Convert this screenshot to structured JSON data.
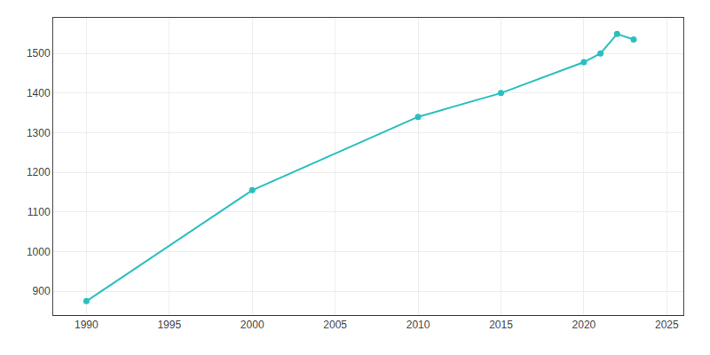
{
  "chart_data": {
    "type": "line",
    "x": [
      1990,
      2000,
      2010,
      2015,
      2020,
      2021,
      2022,
      2023
    ],
    "values": [
      875,
      1155,
      1340,
      1400,
      1478,
      1500,
      1549,
      1535
    ],
    "color": "#2ABFBF",
    "marker": "circle",
    "xlim": [
      1988,
      2026
    ],
    "ylim": [
      840,
      1590
    ],
    "xticks": [
      1990,
      1995,
      2000,
      2005,
      2010,
      2015,
      2020,
      2025
    ],
    "yticks": [
      900,
      1000,
      1100,
      1200,
      1300,
      1400,
      1500
    ],
    "grid": true
  }
}
